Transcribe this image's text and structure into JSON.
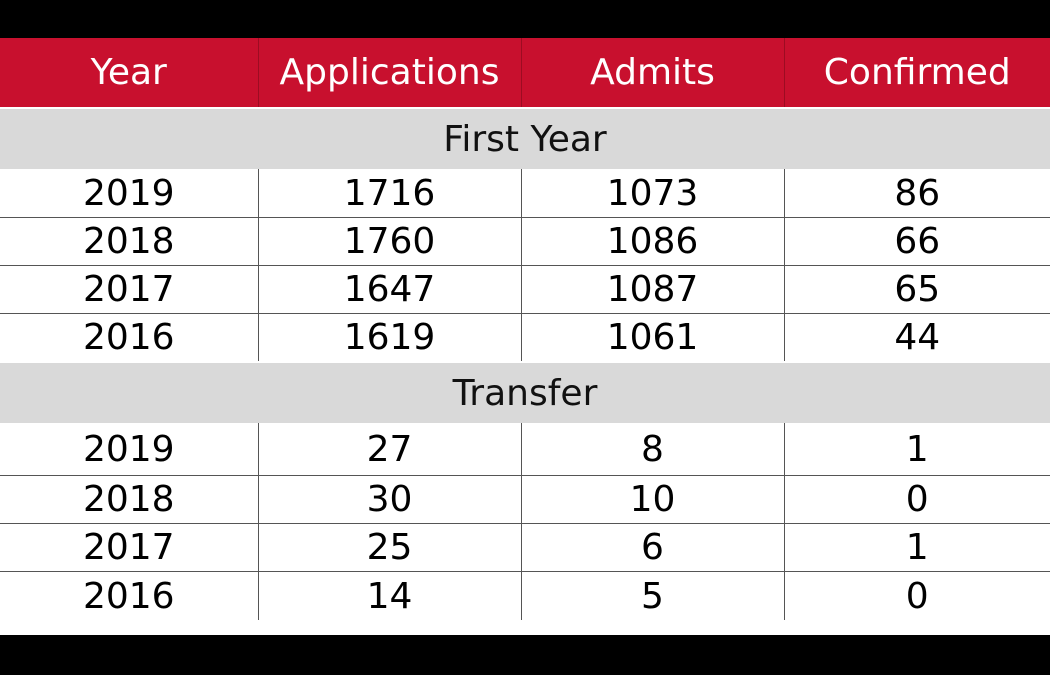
{
  "colors": {
    "header_bg": "#c8102e",
    "header_text": "#ffffff",
    "section_bg": "#d9d9d9",
    "outer_bg": "#000000"
  },
  "chart_data": {
    "type": "table",
    "columns": [
      "Year",
      "Applications",
      "Admits",
      "Confirmed"
    ],
    "sections": [
      {
        "name": "First Year",
        "rows": [
          {
            "year": "2019",
            "applications": "1716",
            "admits": "1073",
            "confirmed": "86"
          },
          {
            "year": "2018",
            "applications": "1760",
            "admits": "1086",
            "confirmed": "66"
          },
          {
            "year": "2017",
            "applications": "1647",
            "admits": "1087",
            "confirmed": "65"
          },
          {
            "year": "2016",
            "applications": "1619",
            "admits": "1061",
            "confirmed": "44"
          }
        ]
      },
      {
        "name": "Transfer",
        "rows": [
          {
            "year": "2019",
            "applications": "27",
            "admits": "8",
            "confirmed": "1"
          },
          {
            "year": "2018",
            "applications": "30",
            "admits": "10",
            "confirmed": "0"
          },
          {
            "year": "2017",
            "applications": "25",
            "admits": "6",
            "confirmed": "1"
          },
          {
            "year": "2016",
            "applications": "14",
            "admits": "5",
            "confirmed": "0"
          }
        ]
      }
    ]
  }
}
